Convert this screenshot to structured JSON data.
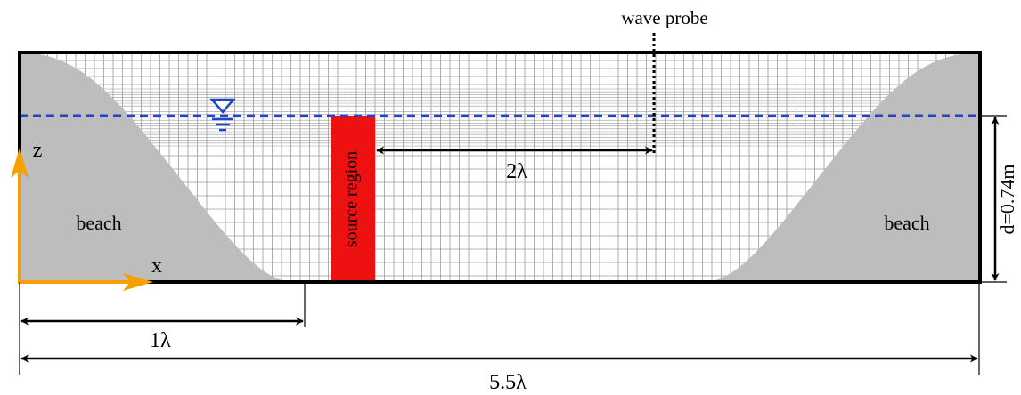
{
  "labels": {
    "wave_probe": "wave probe",
    "source_region": "source region",
    "beach_left": "beach",
    "beach_right": "beach",
    "axis_z": "z",
    "axis_x": "x",
    "dist_probe": "2λ",
    "dist_one": "1λ",
    "dist_total": "5.5λ",
    "depth": "d=0.74m"
  },
  "colors": {
    "beach": "#bdbdbd",
    "grid": "#9a9a9a",
    "free_surface": "#1f45c8",
    "source": "#ee1111",
    "axes": "#f5a000",
    "frame": "#000000"
  },
  "icons": {
    "water_level": "free-surface-triangle-icon"
  }
}
